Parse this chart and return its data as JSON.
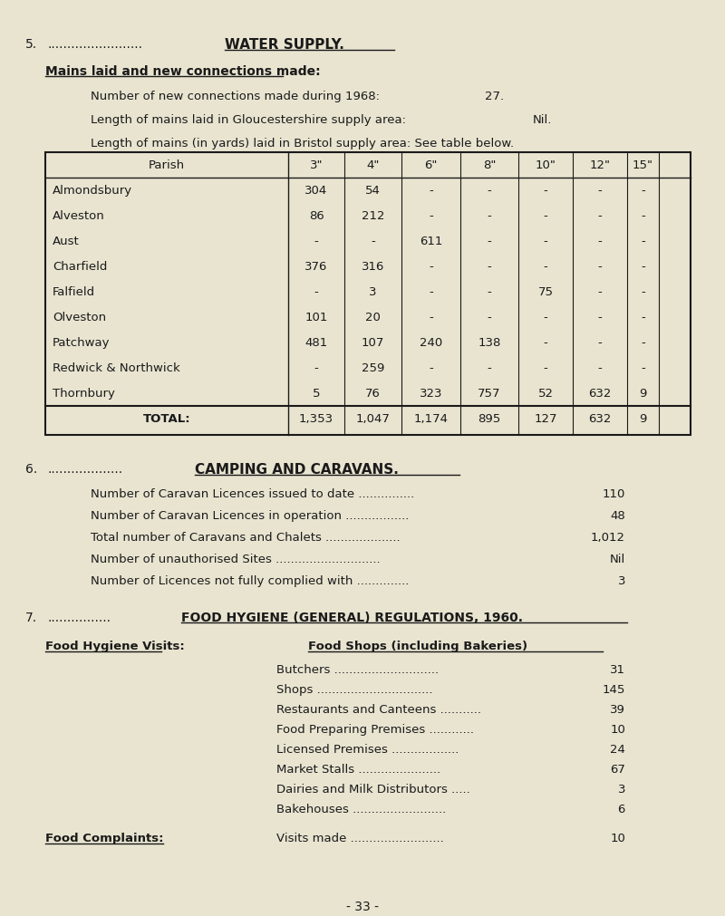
{
  "bg_color": "#e8e4d0",
  "text_color": "#1a1a1a",
  "page_number": "- 33 -",
  "section5": {
    "heading_num": "5.",
    "heading_dots": "........................",
    "heading_title": "WATER SUPPLY.",
    "subheading": "Mains laid and new connections made:",
    "line1_left": "Number of new connections made during 1968:",
    "line1_right": "27.",
    "line2_left": "Length of mains laid in Gloucestershire supply area:",
    "line2_right": "Nil.",
    "line3": "Length of mains (in yards) laid in Bristol supply area: See table below."
  },
  "table": {
    "headers": [
      "Parish",
      "3\"",
      "4\"",
      "6\"",
      "8\"",
      "10\"",
      "12\"",
      "15\""
    ],
    "rows": [
      [
        "Almondsbury",
        "304",
        "54",
        "-",
        "-",
        "-",
        "-",
        "-"
      ],
      [
        "Alveston",
        "86",
        "212",
        "-",
        "-",
        "-",
        "-",
        "-"
      ],
      [
        "Aust",
        "-",
        "-",
        "611",
        "-",
        "-",
        "-",
        "-"
      ],
      [
        "Charfield",
        "376",
        "316",
        "-",
        "-",
        "-",
        "-",
        "-"
      ],
      [
        "Falfield",
        "-",
        "3",
        "-",
        "-",
        "75",
        "-",
        "-"
      ],
      [
        "Olveston",
        "101",
        "20",
        "-",
        "-",
        "-",
        "-",
        "-"
      ],
      [
        "Patchway",
        "481",
        "107",
        "240",
        "138",
        "-",
        "-",
        "-"
      ],
      [
        "Redwick & Northwick",
        "-",
        "259",
        "-",
        "-",
        "-",
        "-",
        "-"
      ],
      [
        "Thornbury",
        "5",
        "76",
        "323",
        "757",
        "52",
        "632",
        "9"
      ]
    ],
    "total_row": [
      "TOTAL:",
      "1,353",
      "1,047",
      "1,174",
      "895",
      "127",
      "632",
      "9"
    ]
  },
  "section6": {
    "heading_num": "6.",
    "heading_dots": "...................",
    "heading_title": "CAMPING AND CARAVANS.",
    "lines": [
      [
        "Number of Caravan Licences issued to date ...............",
        "110"
      ],
      [
        "Number of Caravan Licences in operation .................",
        "48"
      ],
      [
        "Total number of Caravans and Chalets ....................",
        "1,012"
      ],
      [
        "Number of unauthorised Sites ............................",
        "Nil"
      ],
      [
        "Number of Licences not fully complied with ..............",
        "3"
      ]
    ]
  },
  "section7": {
    "heading_num": "7.",
    "heading_dots": "................",
    "heading_title": "FOOD HYGIENE (GENERAL) REGULATIONS, 1960.",
    "col1_label": "Food Hygiene Visits:",
    "col2_label": "Food Shops (including Bakeries)",
    "items": [
      [
        "Butchers ............................",
        "31"
      ],
      [
        "Shops ...............................",
        "145"
      ],
      [
        "Restaurants and Canteens ...........",
        "39"
      ],
      [
        "Food Preparing Premises ............",
        "10"
      ],
      [
        "Licensed Premises ..................",
        "24"
      ],
      [
        "Market Stalls ......................",
        "67"
      ],
      [
        "Dairies and Milk Distributors .....",
        "3"
      ],
      [
        "Bakehouses .........................",
        "6"
      ]
    ],
    "complaints_label": "Food Complaints:",
    "complaints_item": [
      "Visits made .........................",
      "10"
    ]
  }
}
